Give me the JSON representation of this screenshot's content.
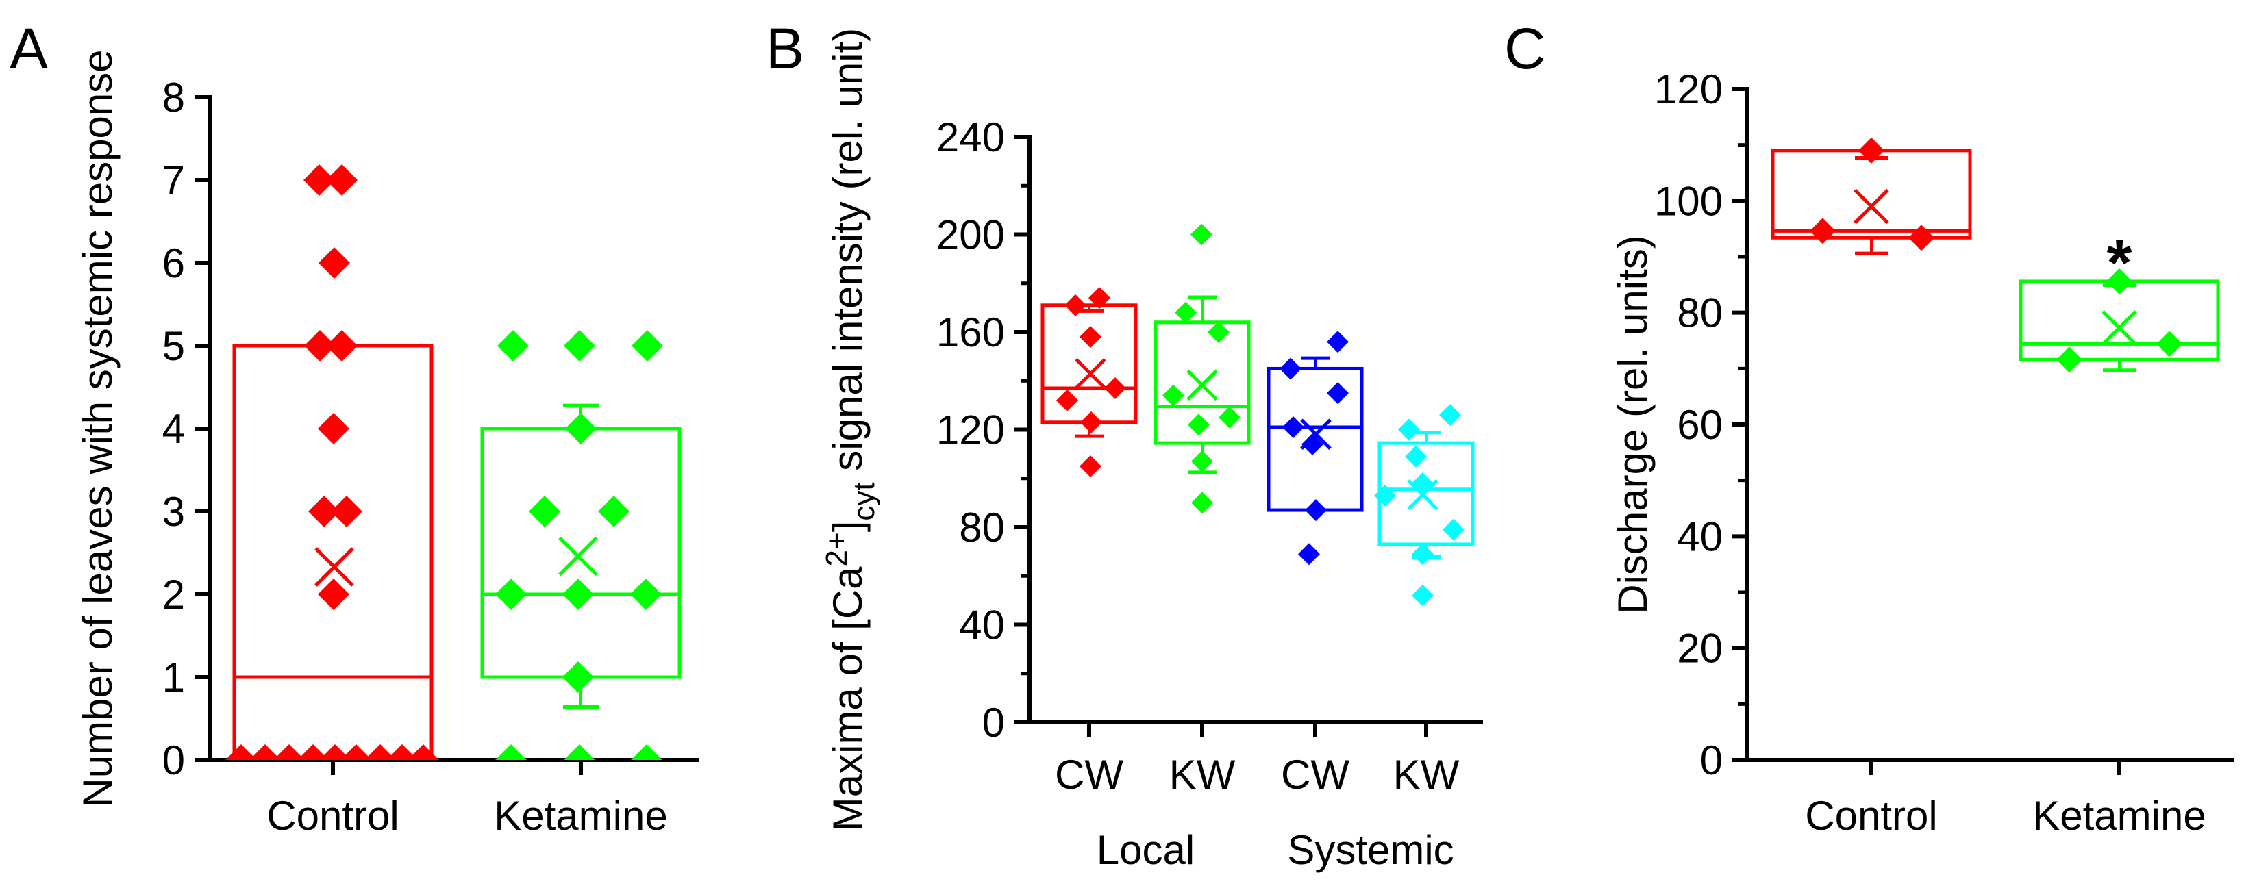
{
  "figure": {
    "background": "#FFFFFF",
    "panel_letters": [
      "A",
      "B",
      "C"
    ]
  },
  "chart_data": [
    {
      "panel_label": "A",
      "type": "box-scatter",
      "title": "",
      "xlabel": "",
      "ylabel": "Number of leaves with systemic response",
      "ylabel_parts": [
        {
          "t": "Number of leaves with systemic response"
        }
      ],
      "ylim": [
        0,
        8
      ],
      "ytick_major": 1,
      "ytick_minor": null,
      "grid": false,
      "legend": "none",
      "categories": [
        "Control",
        "Ketamine"
      ],
      "group_labels": [],
      "annotations": [],
      "series": [
        {
          "name": "Control",
          "color": "#FF0000",
          "points": [
            [
              7,
              -20
            ],
            [
              7,
              13
            ],
            [
              6,
              2
            ],
            [
              5,
              -19
            ],
            [
              5,
              13
            ],
            [
              4,
              1
            ],
            [
              3,
              -13
            ],
            [
              3,
              20
            ],
            [
              2,
              1
            ],
            [
              0,
              -134
            ],
            [
              0,
              -99
            ],
            [
              0,
              -64
            ],
            [
              0,
              -29
            ],
            [
              0,
              3
            ],
            [
              0,
              34
            ],
            [
              0,
              69
            ],
            [
              0,
              101
            ],
            [
              0,
              132
            ]
          ],
          "mean": 2.33,
          "mean_dx": 2,
          "box": {
            "q1": 0,
            "median": 1,
            "q3": 5,
            "whisker_low": null,
            "whisker_high": null
          }
        },
        {
          "name": "Ketamine",
          "color": "#00FF00",
          "points": [
            [
              5,
              -99
            ],
            [
              5,
              -2
            ],
            [
              5,
              97
            ],
            [
              4,
              0
            ],
            [
              3,
              -53
            ],
            [
              3,
              48
            ],
            [
              2,
              -102
            ],
            [
              2,
              -4
            ],
            [
              2,
              95
            ],
            [
              1,
              -4
            ],
            [
              0,
              -102
            ],
            [
              0,
              -2
            ],
            [
              0,
              96
            ]
          ],
          "mean": 2.46,
          "mean_dx": -4,
          "box": {
            "q1": 1,
            "median": 2,
            "q3": 4,
            "whisker_low": 0.64,
            "whisker_high": 4.28
          }
        }
      ]
    },
    {
      "panel_label": "B",
      "type": "box-scatter",
      "title": "",
      "xlabel": "",
      "ylabel": "Maxima of [Ca2+]cyt signal intensity (rel. unit)",
      "ylabel_parts": [
        {
          "t": "Maxima of [Ca"
        },
        {
          "t": "2+",
          "sup": true
        },
        {
          "t": "]"
        },
        {
          "t": "cyt",
          "sub": true
        },
        {
          "t": " signal intensity (rel. unit)"
        }
      ],
      "ylim": [
        0,
        240
      ],
      "ytick_major": 40,
      "ytick_minor": 20,
      "grid": false,
      "legend": "none",
      "categories": [
        "CW",
        "KW",
        "CW",
        "KW"
      ],
      "group_labels": [
        {
          "label": "Local",
          "from": 0,
          "to": 1
        },
        {
          "label": "Systemic",
          "from": 2,
          "to": 3
        }
      ],
      "annotations": [],
      "series": [
        {
          "name": "CW Local",
          "color": "#FF0000",
          "points": [
            [
              174,
              15
            ],
            [
              171,
              -20
            ],
            [
              158,
              2
            ],
            [
              137,
              38
            ],
            [
              132,
              -32
            ],
            [
              123,
              3
            ],
            [
              105,
              2
            ]
          ],
          "mean": 142.9,
          "mean_dx": 2,
          "box": {
            "q1": 123,
            "median": 137,
            "q3": 171,
            "whisker_low": 117.3,
            "whisker_high": 168.6
          }
        },
        {
          "name": "KW Local",
          "color": "#00FF00",
          "points": [
            [
              200,
              -1
            ],
            [
              168,
              -24
            ],
            [
              160,
              24
            ],
            [
              134,
              -42
            ],
            [
              125,
              40
            ],
            [
              122,
              -5
            ],
            [
              107,
              0
            ],
            [
              90,
              0
            ]
          ],
          "mean": 138.3,
          "mean_dx": 0,
          "box": {
            "q1": 114.5,
            "median": 129.5,
            "q3": 164,
            "whisker_low": 102.5,
            "whisker_high": 174.3
          }
        },
        {
          "name": "CW Systemic",
          "color": "#0000FF",
          "points": [
            [
              156,
              33
            ],
            [
              145,
              -36
            ],
            [
              135,
              33
            ],
            [
              121,
              -32
            ],
            [
              114,
              -4
            ],
            [
              87,
              1
            ],
            [
              69,
              -9
            ]
          ],
          "mean": 118.1,
          "mean_dx": 1,
          "box": {
            "q1": 87,
            "median": 121,
            "q3": 145,
            "whisker_low": null,
            "whisker_high": 149.3
          }
        },
        {
          "name": "KW Systemic",
          "color": "#00FFFF",
          "points": [
            [
              126,
              35
            ],
            [
              120,
              -25
            ],
            [
              109,
              -15
            ],
            [
              98,
              -5
            ],
            [
              93,
              -60
            ],
            [
              79,
              40
            ],
            [
              69,
              -5
            ],
            [
              52,
              -5
            ]
          ],
          "mean": 93.3,
          "mean_dx": -5,
          "box": {
            "q1": 73,
            "median": 95.5,
            "q3": 114.5,
            "whisker_low": 67.8,
            "whisker_high": 118.8
          }
        }
      ]
    },
    {
      "panel_label": "C",
      "type": "box-scatter",
      "title": "",
      "xlabel": "",
      "ylabel": "Discharge (rel. units)",
      "ylabel_parts": [
        {
          "t": "Discharge (rel. units)"
        }
      ],
      "ylim": [
        0,
        120
      ],
      "ytick_major": 20,
      "ytick_minor": 10,
      "grid": false,
      "legend": "none",
      "categories": [
        "Control",
        "Ketamine"
      ],
      "group_labels": [],
      "annotations": [
        {
          "text": "*",
          "category": 1,
          "y": 85
        }
      ],
      "series": [
        {
          "name": "Control",
          "color": "#FF0000",
          "points": [
            [
              109,
              0
            ],
            [
              94.6,
              -71
            ],
            [
              93.4,
              73
            ]
          ],
          "mean": 99.0,
          "mean_dx": 0,
          "box": {
            "q1": 93.4,
            "median": 94.6,
            "q3": 109,
            "whisker_low": 90.6,
            "whisker_high": 107.7
          }
        },
        {
          "name": "Ketamine",
          "color": "#00FF00",
          "points": [
            [
              85.6,
              0
            ],
            [
              74.4,
              73
            ],
            [
              71.6,
              -73
            ]
          ],
          "mean": 77.3,
          "mean_dx": 0,
          "box": {
            "q1": 71.6,
            "median": 74.4,
            "q3": 85.6,
            "whisker_low": 69.7,
            "whisker_high": 84.9
          }
        }
      ]
    }
  ]
}
